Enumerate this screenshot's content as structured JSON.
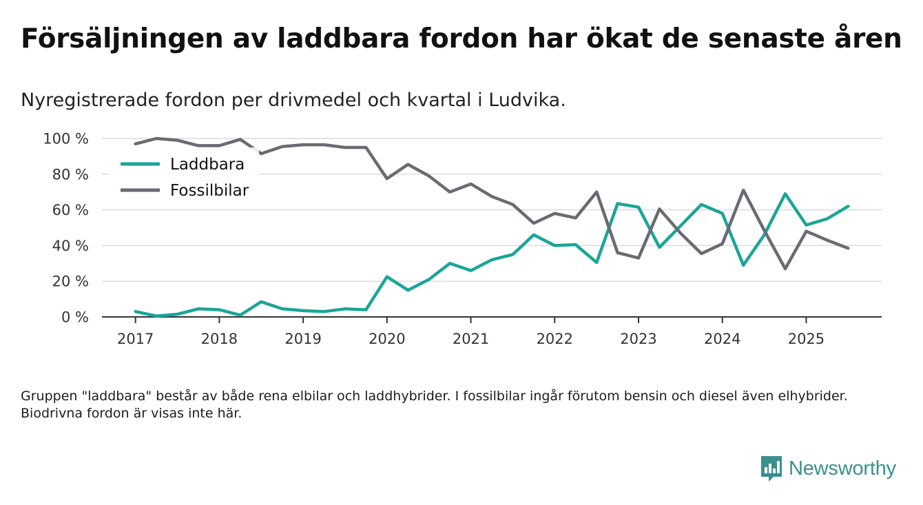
{
  "header": {
    "title": "Försäljningen av laddbara fordon har ökat de senaste åren",
    "subtitle": "Nyregistrerade fordon per drivmedel och kvartal i Ludvika."
  },
  "footnote": "Gruppen \"laddbara\" består av både rena elbilar och laddhybrider. I fossilbilar ingår förutom bensin och diesel även elhybrider. Biodrivna fordon är visas inte här.",
  "brand": {
    "name": "Newsworthy",
    "icon": "newsworthy-logo-icon",
    "color": "#3a8f8f"
  },
  "chart_data": {
    "type": "line",
    "title": "Försäljningen av laddbara fordon har ökat de senaste åren",
    "subtitle": "Nyregistrerade fordon per drivmedel och kvartal i Ludvika.",
    "xlabel": "",
    "ylabel": "",
    "x": [
      2017.0,
      2017.25,
      2017.5,
      2017.75,
      2018.0,
      2018.25,
      2018.5,
      2018.75,
      2019.0,
      2019.25,
      2019.5,
      2019.75,
      2020.0,
      2020.25,
      2020.5,
      2020.75,
      2021.0,
      2021.25,
      2021.5,
      2021.75,
      2022.0,
      2022.25,
      2022.5,
      2022.75,
      2023.0,
      2023.25,
      2023.5,
      2023.75,
      2024.0,
      2024.25,
      2024.5,
      2024.75,
      2025.0,
      2025.25,
      2025.5
    ],
    "xlim": [
      2016.6,
      2025.9
    ],
    "x_ticks": [
      2017,
      2018,
      2019,
      2020,
      2021,
      2022,
      2023,
      2024,
      2025
    ],
    "x_tick_labels": [
      "2017",
      "2018",
      "2019",
      "2020",
      "2021",
      "2022",
      "2023",
      "2024",
      "2025"
    ],
    "ylim": [
      0,
      100
    ],
    "y_ticks": [
      0,
      20,
      40,
      60,
      80,
      100
    ],
    "y_tick_labels": [
      "0 %",
      "20 %",
      "40 %",
      "60 %",
      "80 %",
      "100 %"
    ],
    "grid": true,
    "legend_position": "top-left",
    "series": [
      {
        "name": "Laddbara",
        "color": "#1aa598",
        "values": [
          3,
          0.5,
          1.5,
          4.5,
          4,
          1,
          8.5,
          4.5,
          3.5,
          3,
          4.5,
          4,
          22.5,
          15,
          21,
          30,
          26,
          32,
          35,
          46,
          40,
          40.5,
          30.5,
          63.5,
          61.5,
          39,
          51,
          63,
          58,
          29,
          46,
          69,
          51.5,
          55,
          62
        ]
      },
      {
        "name": "Fossilbilar",
        "color": "#6b6a73",
        "values": [
          97,
          100,
          99,
          96,
          96,
          99.5,
          91.5,
          95.5,
          96.5,
          96.5,
          95,
          95,
          77.5,
          85.5,
          79,
          70,
          74.5,
          67.5,
          63,
          52.5,
          58,
          55.5,
          70,
          36,
          33,
          60.5,
          47,
          35.5,
          41,
          71,
          48.5,
          27,
          48,
          43,
          38.5
        ]
      }
    ]
  }
}
